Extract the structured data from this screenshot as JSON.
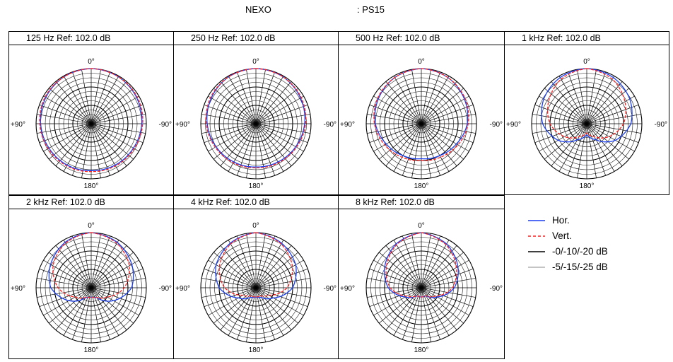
{
  "header": {
    "brand": "NEXO",
    "model": ": PS15"
  },
  "chart_data": {
    "type": "polar",
    "angle_labels": {
      "top": "0°",
      "bottom": "180°",
      "left": "+90°",
      "right": "-90°"
    },
    "rings_db": [
      -5,
      -10,
      -15,
      -20,
      -25
    ],
    "angle_step_deg": 10,
    "angles_deg": [
      0,
      30,
      60,
      90,
      120,
      150,
      180,
      210,
      240,
      270,
      300,
      330
    ],
    "legend": [
      {
        "label": "Hor.",
        "color": "#1a3ff0",
        "style": "solid"
      },
      {
        "label": "Vert.",
        "color": "#ff2020",
        "style": "dashed"
      },
      {
        "label": "-0/-10/-20 dB",
        "color": "#000000",
        "style": "solid"
      },
      {
        "label": "-5/-15/-25 dB",
        "color": "#b0b0b0",
        "style": "solid"
      }
    ],
    "panels": [
      {
        "title": "125 Hz Ref: 102.0 dB",
        "hor": [
          0,
          -0.5,
          -1.5,
          -2.5,
          -3.5,
          -4,
          -4.5,
          -4,
          -3.5,
          -2.5,
          -1.5,
          -0.5
        ],
        "vert": [
          0,
          -0.5,
          -1,
          -2,
          -3,
          -3.5,
          -4,
          -3.5,
          -3,
          -2,
          -1,
          -0.5
        ]
      },
      {
        "title": "250 Hz Ref: 102.0 dB",
        "hor": [
          0,
          -0.5,
          -2,
          -3.5,
          -5,
          -6,
          -6.5,
          -6,
          -5,
          -3.5,
          -2,
          -0.5
        ],
        "vert": [
          0,
          -0.5,
          -1.5,
          -3,
          -4.5,
          -5.5,
          -6,
          -5.5,
          -4.5,
          -3,
          -1.5,
          -0.5
        ]
      },
      {
        "title": "500 Hz Ref: 102.0 dB",
        "hor": [
          0,
          -1,
          -3,
          -5,
          -8,
          -10,
          -11,
          -10,
          -8,
          -5,
          -3,
          -1
        ],
        "vert": [
          0,
          -1,
          -2.5,
          -4.5,
          -7,
          -9,
          -10,
          -9,
          -7,
          -4.5,
          -2.5,
          -1
        ]
      },
      {
        "title": "1 kHz Ref: 102.0 dB",
        "hor": [
          0,
          -1,
          -3,
          -6,
          -12,
          -20,
          -24,
          -20,
          -12,
          -6,
          -3,
          -1
        ],
        "vert": [
          0,
          -2,
          -6,
          -10,
          -16,
          -22,
          -25,
          -22,
          -16,
          -10,
          -6,
          -2
        ]
      },
      {
        "title": "2 kHz Ref: 102.0 dB",
        "hor": [
          0,
          -1.5,
          -4.5,
          -8,
          -16,
          -24,
          -25,
          -24,
          -16,
          -8,
          -4.5,
          -1.5
        ],
        "vert": [
          0,
          -2,
          -6,
          -12,
          -20,
          -24,
          -25,
          -24,
          -20,
          -12,
          -6,
          -2
        ]
      },
      {
        "title": "4 kHz Ref: 102.0 dB",
        "hor": [
          0,
          -2,
          -5,
          -10,
          -19,
          -24,
          -25,
          -24,
          -19,
          -10,
          -5,
          -2
        ],
        "vert": [
          0,
          -2.5,
          -7,
          -13,
          -22,
          -25,
          -25,
          -25,
          -22,
          -13,
          -7,
          -2.5
        ]
      },
      {
        "title": "8 kHz Ref: 102.0 dB",
        "hor": [
          0,
          -2.5,
          -7,
          -12,
          -20,
          -25,
          -25,
          -25,
          -20,
          -12,
          -7,
          -2.5
        ],
        "vert": [
          0,
          -3,
          -8,
          -13,
          -21,
          -25,
          -25,
          -25,
          -21,
          -13,
          -8,
          -3
        ]
      }
    ]
  }
}
